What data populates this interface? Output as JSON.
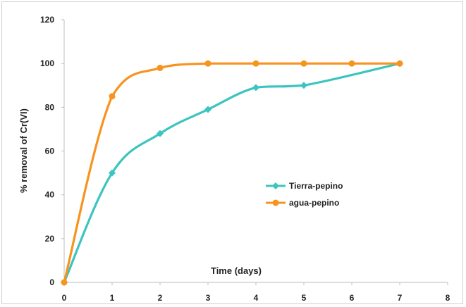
{
  "chart_data": {
    "type": "line",
    "xlabel": "Time  (days)",
    "ylabel": "% removal of  Cr(VI)",
    "xlim": [
      0,
      8
    ],
    "ylim": [
      0,
      120
    ],
    "xticks": [
      "0",
      "1",
      "2",
      "3",
      "4",
      "5",
      "6",
      "7",
      "8"
    ],
    "yticks": [
      "0",
      "20",
      "40",
      "60",
      "80",
      "100",
      "120"
    ],
    "grid": false,
    "legend_position": "center-right",
    "series": [
      {
        "name": "Tierra-pepino",
        "color": "#3cc4c0",
        "marker": "diamond",
        "x": [
          0,
          1,
          2,
          3,
          4,
          5,
          7
        ],
        "y": [
          0,
          50,
          68,
          79,
          89,
          90,
          100
        ]
      },
      {
        "name": "agua-pepino",
        "color": "#f7931e",
        "marker": "circle",
        "x": [
          0,
          1,
          2,
          3,
          4,
          5,
          6,
          7
        ],
        "y": [
          0,
          85,
          98,
          100,
          100,
          100,
          100,
          100
        ]
      }
    ]
  }
}
